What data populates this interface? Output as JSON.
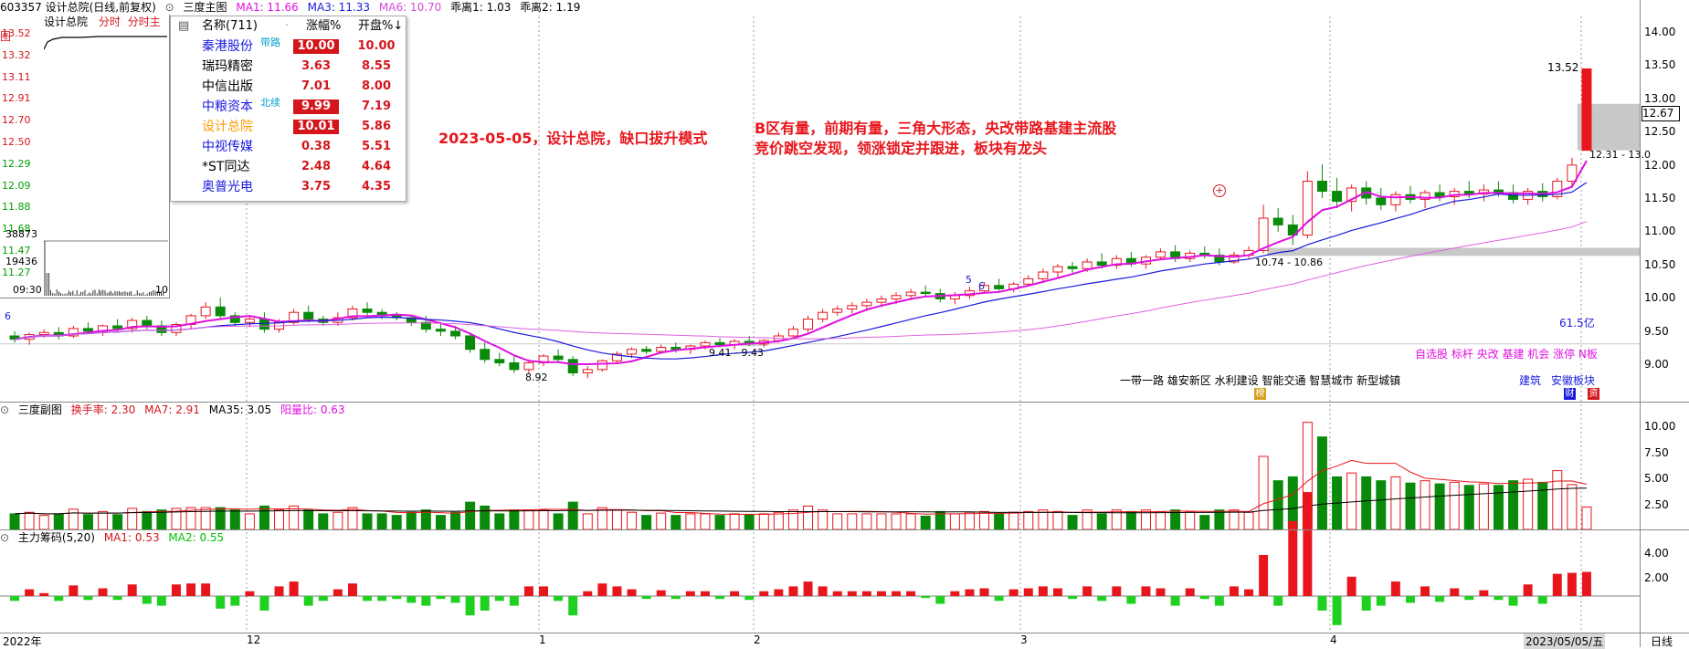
{
  "header": {
    "stock": "603357 设计总院(日线,前复权)",
    "panel_name": "三度主图",
    "ma1": "MA1: 11.66",
    "ma3": "MA3: 11.33",
    "ma6": "MA6: 10.70",
    "ratio1": "乖离1: 1.03",
    "ratio2": "乖离2: 1.19"
  },
  "sub1_header": {
    "name": "三度副图",
    "turnover": "换手率: 2.30",
    "ma7": "MA7: 2.91",
    "ma35": "MA35: 3.05",
    "yl": "阳量比: 0.63"
  },
  "sub2_header": {
    "name": "主力筹码(5,20)",
    "ma1": "MA1: 0.53",
    "ma2": "MA2: 0.55"
  },
  "mini_chart": {
    "title": "设计总院",
    "tab1": "分时",
    "tab2": "分时主图",
    "price_ticks": [
      "13.52",
      "13.32",
      "13.11",
      "12.91",
      "12.70",
      "12.50",
      "12.29",
      "12.09",
      "11.88",
      "11.68",
      "11.47",
      "11.27"
    ],
    "vol_ticks": [
      "38873",
      "19436"
    ],
    "time_start": "09:30",
    "time_end": "10"
  },
  "sector_popup": {
    "col_name": "名称(711)",
    "col_dot": "·",
    "col_change": "涨幅%",
    "col_open": "开盘%↓",
    "rows": [
      {
        "name": "秦港股份",
        "tag": "带路",
        "change": "10.00",
        "open": "10.00",
        "color": "#1a1adc",
        "hl": true
      },
      {
        "name": "瑞玛精密",
        "tag": "",
        "change": "3.63",
        "open": "8.55",
        "color": "#000000",
        "hl": false
      },
      {
        "name": "中信出版",
        "tag": "",
        "change": "7.01",
        "open": "8.00",
        "color": "#000000",
        "hl": false
      },
      {
        "name": "中粮资本",
        "tag": "北续",
        "change": "9.99",
        "open": "7.19",
        "color": "#1a1adc",
        "hl": true
      },
      {
        "name": "设计总院",
        "tag": "",
        "change": "10.01",
        "open": "5.86",
        "color": "#ff9900",
        "hl": true
      },
      {
        "name": "中视传媒",
        "tag": "",
        "change": "0.38",
        "open": "5.51",
        "color": "#1a1adc",
        "hl": false
      },
      {
        "name": "*ST同达",
        "tag": "",
        "change": "2.48",
        "open": "4.64",
        "color": "#000000",
        "hl": false
      },
      {
        "name": "奥普光电",
        "tag": "",
        "change": "3.75",
        "open": "4.35",
        "color": "#1a1adc",
        "hl": false
      }
    ]
  },
  "annotations": {
    "date_title": "2023-05-05，设计总院，缺口拔升模式",
    "note1": "B区有量，前期有量，三角大形态，央改带路基建主流股",
    "note2": "竞价跳空发现，领涨锁定并跟进，板块有龙头"
  },
  "chart_labels": {
    "high_label": "13.52",
    "low_label": "8.92",
    "gap_low_label": "9.41 - 9.43",
    "gap_high_label": "10.74 - 10.86",
    "last_gap_label": "12.31 - 13.0",
    "amount": "61.5亿",
    "num6_left": "6",
    "num5": "5",
    "num6": "6",
    "tags_line": "自选股 标杆 央改 基建 机会 涨停 N板",
    "concepts": "一带一路  雄安新区  水利建设  智能交通  智慧城市  新型城镇",
    "sector1": "建筑",
    "sector2": "安徽板块",
    "icon1": "榜",
    "icon2": "财",
    "icon3": "资"
  },
  "right_axis": {
    "main": [
      "14.00",
      "13.50",
      "13.00",
      "12.50",
      "12.00",
      "11.50",
      "11.00",
      "10.50",
      "10.00",
      "9.50",
      "9.00"
    ],
    "current_price": "12.67",
    "sub1": [
      "10.00",
      "7.50",
      "5.00",
      "2.50"
    ],
    "sub2": [
      "4.00",
      "2.00"
    ]
  },
  "bottom_axis": {
    "labels": [
      "2022年",
      "12",
      "1",
      "2",
      "3",
      "4"
    ],
    "current_date": "2023/05/05/五",
    "period": "日线"
  },
  "chart_data": {
    "type": "candlestick",
    "title": "603357 设计总院(日线,前复权)",
    "ylim": [
      8.6,
      14.3
    ],
    "months": [
      "2022年",
      "12",
      "1",
      "2",
      "3",
      "4",
      "5"
    ],
    "ohlc": [
      [
        9.55,
        9.62,
        9.45,
        9.5
      ],
      [
        9.5,
        9.6,
        9.42,
        9.57
      ],
      [
        9.57,
        9.65,
        9.52,
        9.6
      ],
      [
        9.6,
        9.68,
        9.5,
        9.55
      ],
      [
        9.55,
        9.7,
        9.52,
        9.66
      ],
      [
        9.66,
        9.75,
        9.58,
        9.62
      ],
      [
        9.62,
        9.72,
        9.55,
        9.7
      ],
      [
        9.7,
        9.8,
        9.62,
        9.66
      ],
      [
        9.66,
        9.82,
        9.6,
        9.78
      ],
      [
        9.78,
        9.85,
        9.65,
        9.7
      ],
      [
        9.7,
        9.78,
        9.55,
        9.6
      ],
      [
        9.6,
        9.75,
        9.55,
        9.72
      ],
      [
        9.72,
        9.88,
        9.65,
        9.85
      ],
      [
        9.85,
        10.05,
        9.8,
        9.98
      ],
      [
        9.98,
        10.12,
        9.8,
        9.85
      ],
      [
        9.85,
        9.9,
        9.7,
        9.75
      ],
      [
        9.75,
        9.85,
        9.68,
        9.8
      ],
      [
        9.8,
        9.9,
        9.6,
        9.65
      ],
      [
        9.65,
        9.8,
        9.6,
        9.75
      ],
      [
        9.75,
        9.95,
        9.72,
        9.9
      ],
      [
        9.9,
        10.0,
        9.75,
        9.8
      ],
      [
        9.8,
        9.85,
        9.7,
        9.75
      ],
      [
        9.75,
        9.9,
        9.7,
        9.82
      ],
      [
        9.82,
        10.0,
        9.78,
        9.95
      ],
      [
        9.95,
        10.05,
        9.85,
        9.9
      ],
      [
        9.9,
        9.95,
        9.8,
        9.85
      ],
      [
        9.85,
        9.9,
        9.78,
        9.82
      ],
      [
        9.82,
        9.85,
        9.7,
        9.75
      ],
      [
        9.75,
        9.85,
        9.6,
        9.65
      ],
      [
        9.65,
        9.75,
        9.55,
        9.62
      ],
      [
        9.62,
        9.7,
        9.5,
        9.55
      ],
      [
        9.55,
        9.6,
        9.3,
        9.35
      ],
      [
        9.35,
        9.45,
        9.15,
        9.2
      ],
      [
        9.2,
        9.3,
        9.1,
        9.15
      ],
      [
        9.15,
        9.25,
        9.0,
        9.05
      ],
      [
        9.05,
        9.2,
        8.98,
        9.15
      ],
      [
        9.15,
        9.28,
        9.1,
        9.25
      ],
      [
        9.25,
        9.35,
        9.15,
        9.2
      ],
      [
        9.2,
        9.25,
        8.95,
        9.0
      ],
      [
        9.0,
        9.1,
        8.92,
        9.05
      ],
      [
        9.05,
        9.2,
        9.02,
        9.18
      ],
      [
        9.18,
        9.32,
        9.15,
        9.28
      ],
      [
        9.28,
        9.38,
        9.22,
        9.35
      ],
      [
        9.35,
        9.4,
        9.28,
        9.32
      ],
      [
        9.32,
        9.42,
        9.28,
        9.38
      ],
      [
        9.38,
        9.45,
        9.3,
        9.35
      ],
      [
        9.35,
        9.42,
        9.28,
        9.4
      ],
      [
        9.4,
        9.48,
        9.35,
        9.45
      ],
      [
        9.45,
        9.52,
        9.38,
        9.42
      ],
      [
        9.42,
        9.5,
        9.35,
        9.47
      ],
      [
        9.47,
        9.55,
        9.4,
        9.43
      ],
      [
        9.43,
        9.5,
        9.38,
        9.48
      ],
      [
        9.48,
        9.6,
        9.45,
        9.55
      ],
      [
        9.55,
        9.7,
        9.5,
        9.65
      ],
      [
        9.65,
        9.85,
        9.6,
        9.8
      ],
      [
        9.8,
        9.95,
        9.75,
        9.9
      ],
      [
        9.9,
        10.0,
        9.85,
        9.95
      ],
      [
        9.95,
        10.05,
        9.88,
        10.0
      ],
      [
        10.0,
        10.1,
        9.92,
        10.05
      ],
      [
        10.05,
        10.15,
        9.98,
        10.1
      ],
      [
        10.1,
        10.2,
        10.02,
        10.15
      ],
      [
        10.15,
        10.25,
        10.08,
        10.2
      ],
      [
        10.2,
        10.3,
        10.12,
        10.18
      ],
      [
        10.18,
        10.25,
        10.05,
        10.1
      ],
      [
        10.1,
        10.2,
        10.02,
        10.15
      ],
      [
        10.15,
        10.28,
        10.1,
        10.22
      ],
      [
        10.22,
        10.35,
        10.18,
        10.3
      ],
      [
        10.3,
        10.4,
        10.22,
        10.25
      ],
      [
        10.25,
        10.35,
        10.2,
        10.32
      ],
      [
        10.32,
        10.45,
        10.28,
        10.4
      ],
      [
        10.4,
        10.55,
        10.35,
        10.5
      ],
      [
        10.5,
        10.62,
        10.42,
        10.58
      ],
      [
        10.58,
        10.65,
        10.48,
        10.55
      ],
      [
        10.55,
        10.7,
        10.5,
        10.65
      ],
      [
        10.65,
        10.78,
        10.55,
        10.6
      ],
      [
        10.6,
        10.75,
        10.55,
        10.7
      ],
      [
        10.7,
        10.8,
        10.58,
        10.62
      ],
      [
        10.62,
        10.75,
        10.55,
        10.72
      ],
      [
        10.72,
        10.85,
        10.68,
        10.8
      ],
      [
        10.8,
        10.9,
        10.65,
        10.7
      ],
      [
        10.7,
        10.82,
        10.65,
        10.78
      ],
      [
        10.78,
        10.88,
        10.7,
        10.75
      ],
      [
        10.75,
        10.85,
        10.6,
        10.65
      ],
      [
        10.65,
        10.8,
        10.62,
        10.75
      ],
      [
        10.75,
        10.88,
        10.7,
        10.82
      ],
      [
        10.82,
        11.5,
        10.78,
        11.3
      ],
      [
        11.3,
        11.45,
        11.1,
        11.2
      ],
      [
        11.2,
        11.35,
        10.9,
        11.05
      ],
      [
        11.05,
        12.0,
        11.0,
        11.85
      ],
      [
        11.85,
        12.1,
        11.6,
        11.7
      ],
      [
        11.7,
        11.9,
        11.45,
        11.55
      ],
      [
        11.55,
        11.8,
        11.4,
        11.75
      ],
      [
        11.75,
        11.85,
        11.5,
        11.6
      ],
      [
        11.6,
        11.75,
        11.42,
        11.5
      ],
      [
        11.5,
        11.7,
        11.4,
        11.65
      ],
      [
        11.65,
        11.78,
        11.52,
        11.58
      ],
      [
        11.58,
        11.72,
        11.45,
        11.68
      ],
      [
        11.68,
        11.8,
        11.55,
        11.62
      ],
      [
        11.62,
        11.75,
        11.5,
        11.7
      ],
      [
        11.7,
        11.85,
        11.6,
        11.66
      ],
      [
        11.66,
        11.8,
        11.55,
        11.72
      ],
      [
        11.72,
        11.85,
        11.62,
        11.68
      ],
      [
        11.68,
        11.8,
        11.52,
        11.58
      ],
      [
        11.58,
        11.75,
        11.5,
        11.7
      ],
      [
        11.7,
        11.82,
        11.55,
        11.62
      ],
      [
        11.62,
        11.9,
        11.58,
        11.85
      ],
      [
        11.85,
        12.2,
        11.75,
        12.09
      ],
      [
        12.31,
        13.52,
        12.31,
        13.52
      ]
    ],
    "volume_ylim": [
      0,
      12
    ],
    "chip_ylim": [
      -1.5,
      5.5
    ]
  }
}
